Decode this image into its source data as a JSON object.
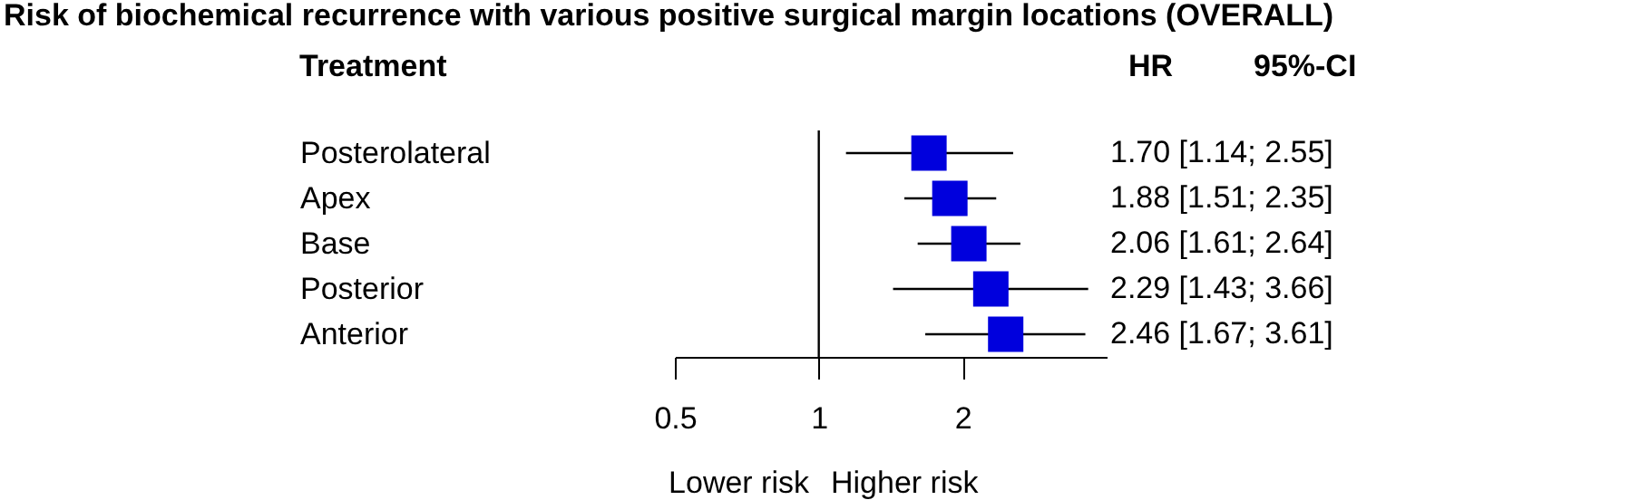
{
  "chart_data": {
    "type": "scatter",
    "title": "Risk of biochemical recurrence with various positive surgical margin locations (OVERALL)",
    "orientation": "horizontal",
    "categories": [
      "Posterolateral",
      "Apex",
      "Base",
      "Posterior",
      "Anterior"
    ],
    "series": [
      {
        "color": "#0000dd",
        "values": [
          1.7,
          1.88,
          2.06,
          2.29,
          2.46
        ],
        "errors": [
          [
            1.14,
            2.55
          ],
          [
            1.51,
            2.35
          ],
          [
            1.61,
            2.64
          ],
          [
            1.43,
            3.66
          ],
          [
            1.67,
            3.61
          ]
        ],
        "value_labels": [
          "1.70 [1.14; 2.55]",
          "1.88 [1.51; 2.35]",
          "2.06 [1.61; 2.64]",
          "2.29 [1.43; 3.66]",
          "2.46 [1.67; 3.61]"
        ]
      }
    ],
    "log": "x",
    "xlim": [
      0.5,
      4
    ],
    "xticks": [
      0.5,
      1,
      2
    ],
    "ref_lines": [
      {
        "axis": "x",
        "value": 1,
        "color": "#000000"
      }
    ],
    "annotations": [
      "Treatment",
      "HR",
      "95%-CI",
      "Lower risk",
      "Higher risk"
    ],
    "marker": "square",
    "grid": false
  }
}
